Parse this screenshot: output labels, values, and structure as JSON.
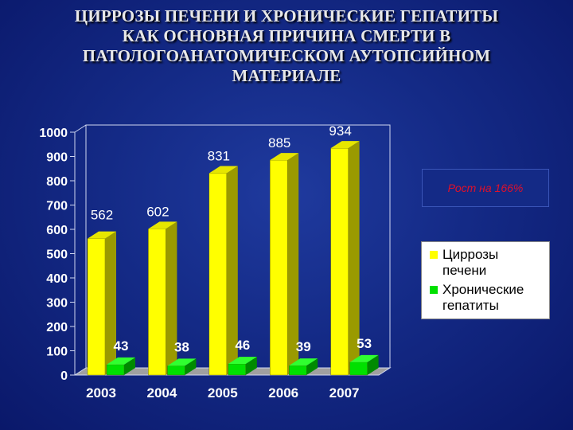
{
  "title_lines": [
    "ЦИРРОЗЫ ПЕЧЕНИ И ХРОНИЧЕСКИЕ ГЕПАТИТЫ",
    "КАК ОСНОВНАЯ ПРИЧИНА СМЕРТИ В",
    "ПАТОЛОГОАНАТОМИЧЕСКОМ АУТОПСИЙНОМ",
    "МАТЕРИАЛЕ"
  ],
  "note": "Рост на 166%",
  "colors": {
    "series1": "#ffff00",
    "series1_side": "#9a9a00",
    "series1_top": "#e6e600",
    "series2": "#00e000",
    "series2_side": "#008a00",
    "series2_top": "#30ff30",
    "plot_wall": "#ffffff",
    "floor": "#a0a0a0",
    "text": "#ffffff",
    "note_text": "#e0102a"
  },
  "legend": [
    {
      "label_lines": [
        "Циррозы",
        "печени"
      ],
      "color": "#ffff00"
    },
    {
      "label_lines": [
        "Хронические",
        "гепатиты"
      ],
      "color": "#00e000"
    }
  ],
  "chart_data": {
    "type": "bar",
    "categories": [
      "2003",
      "2004",
      "2005",
      "2006",
      "2007"
    ],
    "series": [
      {
        "name": "Циррозы печени",
        "values": [
          562,
          602,
          831,
          885,
          934
        ]
      },
      {
        "name": "Хронические гепатиты",
        "values": [
          43,
          38,
          46,
          39,
          53
        ]
      }
    ],
    "yticks": [
      "0",
      "100",
      "200",
      "300",
      "400",
      "500",
      "600",
      "700",
      "800",
      "900",
      "1000"
    ],
    "ylim": [
      0,
      1000
    ],
    "data_labels": {
      "series1": [
        "562",
        "602",
        "831",
        "885",
        "934"
      ],
      "series2": [
        "43",
        "38",
        "46",
        "39",
        "53"
      ]
    },
    "legend_position": "right",
    "grid": false
  }
}
